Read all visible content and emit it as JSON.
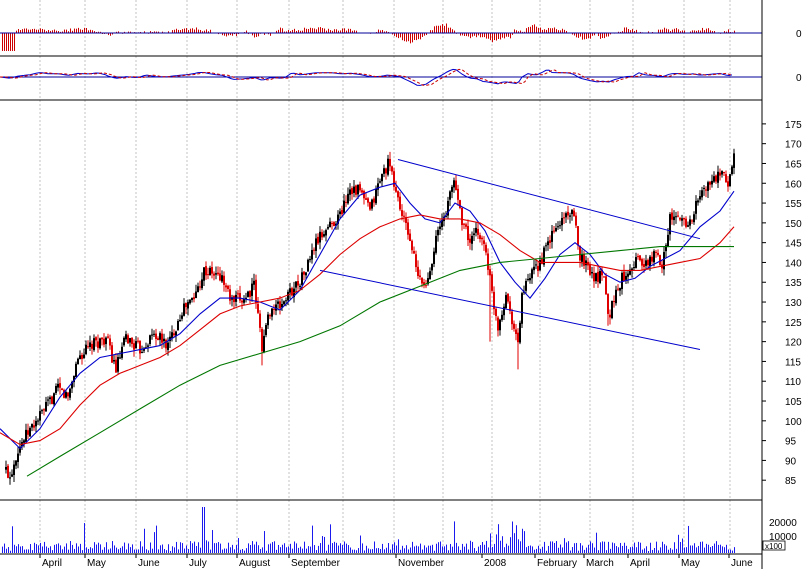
{
  "colors": {
    "price_up": "#000000",
    "price_down": "#e00000",
    "ma_short": "#0000cc",
    "ma_mid": "#dd0000",
    "ma_long": "#007700",
    "channel": "#0000cc",
    "panel_rule": "#000099",
    "volume": "#1a1aee",
    "histogram": "#cc0000",
    "grid": "#aaaaaa"
  },
  "chart_data": [
    {
      "type": "bar",
      "panel": "momentum-histogram",
      "y_tick_labels": [
        "0"
      ],
      "zero_line": true
    },
    {
      "type": "line",
      "panel": "oscillator",
      "y_tick_labels": [
        "0"
      ],
      "series_styles": [
        "solid",
        "dashed"
      ]
    },
    {
      "type": "line",
      "panel": "price",
      "subtype": "ohlc",
      "grid": true,
      "x_tick_labels": [
        "April",
        "May",
        "June",
        "July",
        "August",
        "September",
        "November",
        "2008",
        "February",
        "March",
        "April",
        "May",
        "June"
      ],
      "ylim": [
        80,
        178
      ],
      "y_ticks": [
        85,
        90,
        95,
        100,
        105,
        110,
        115,
        120,
        125,
        130,
        135,
        140,
        145,
        150,
        155,
        160,
        165,
        170,
        175
      ],
      "y_tick_labels": [
        "85",
        "90",
        "95",
        "100",
        "105",
        "110",
        "115",
        "120",
        "125",
        "130",
        "135",
        "140",
        "145",
        "150",
        "155",
        "160",
        "165",
        "170",
        "175"
      ],
      "price_path": [
        [
          0,
          90
        ],
        [
          10,
          86
        ],
        [
          18,
          93
        ],
        [
          28,
          97
        ],
        [
          45,
          103
        ],
        [
          58,
          108
        ],
        [
          68,
          106
        ],
        [
          78,
          116
        ],
        [
          92,
          119
        ],
        [
          106,
          121
        ],
        [
          116,
          113
        ],
        [
          126,
          121
        ],
        [
          140,
          118
        ],
        [
          154,
          122
        ],
        [
          168,
          119
        ],
        [
          182,
          128
        ],
        [
          194,
          131
        ],
        [
          204,
          138
        ],
        [
          214,
          137
        ],
        [
          222,
          136
        ],
        [
          232,
          130
        ],
        [
          244,
          131
        ],
        [
          254,
          134
        ],
        [
          262,
          119
        ],
        [
          270,
          128
        ],
        [
          280,
          129
        ],
        [
          292,
          133
        ],
        [
          304,
          137
        ],
        [
          316,
          145
        ],
        [
          328,
          149
        ],
        [
          340,
          152
        ],
        [
          350,
          159
        ],
        [
          360,
          158
        ],
        [
          370,
          153
        ],
        [
          380,
          161
        ],
        [
          388,
          165
        ],
        [
          394,
          160
        ],
        [
          402,
          152
        ],
        [
          410,
          146
        ],
        [
          418,
          136
        ],
        [
          426,
          134
        ],
        [
          436,
          146
        ],
        [
          446,
          153
        ],
        [
          454,
          161
        ],
        [
          462,
          151
        ],
        [
          470,
          145
        ],
        [
          478,
          148
        ],
        [
          486,
          143
        ],
        [
          492,
          132
        ],
        [
          498,
          124
        ],
        [
          506,
          132
        ],
        [
          512,
          126
        ],
        [
          518,
          119
        ],
        [
          522,
          132
        ],
        [
          530,
          136
        ],
        [
          540,
          140
        ],
        [
          552,
          147
        ],
        [
          560,
          150
        ],
        [
          568,
          153
        ],
        [
          574,
          151
        ],
        [
          580,
          142
        ],
        [
          588,
          139
        ],
        [
          596,
          136
        ],
        [
          604,
          138
        ],
        [
          608,
          126
        ],
        [
          614,
          131
        ],
        [
          622,
          136
        ],
        [
          630,
          139
        ],
        [
          638,
          141
        ],
        [
          646,
          139
        ],
        [
          654,
          142
        ],
        [
          662,
          140
        ],
        [
          670,
          151
        ],
        [
          680,
          151
        ],
        [
          690,
          150
        ],
        [
          700,
          157
        ],
        [
          710,
          160
        ],
        [
          720,
          162
        ],
        [
          728,
          160
        ],
        [
          734,
          167
        ]
      ],
      "low_spikes": [
        [
          262,
          114
        ],
        [
          518,
          113
        ],
        [
          608,
          124
        ],
        [
          490,
          120
        ]
      ],
      "moving_averages": [
        {
          "style": "blue",
          "points": [
            [
              0,
              98
            ],
            [
              20,
              93
            ],
            [
              40,
              98
            ],
            [
              60,
              106
            ],
            [
              80,
              112
            ],
            [
              100,
              116
            ],
            [
              120,
              117
            ],
            [
              140,
              118
            ],
            [
              160,
              119
            ],
            [
              180,
              122
            ],
            [
              200,
              127
            ],
            [
              220,
              131
            ],
            [
              240,
              131
            ],
            [
              260,
              130
            ],
            [
              280,
              128
            ],
            [
              300,
              133
            ],
            [
              320,
              142
            ],
            [
              340,
              151
            ],
            [
              360,
              157
            ],
            [
              380,
              159
            ],
            [
              395,
              160
            ],
            [
              410,
              155
            ],
            [
              425,
              151
            ],
            [
              440,
              150
            ],
            [
              455,
              155
            ],
            [
              470,
              153
            ],
            [
              485,
              148
            ],
            [
              500,
              140
            ],
            [
              515,
              135
            ],
            [
              530,
              131
            ],
            [
              545,
              136
            ],
            [
              560,
              142
            ],
            [
              575,
              145
            ],
            [
              590,
              142
            ],
            [
              605,
              137
            ],
            [
              620,
              135
            ],
            [
              635,
              136
            ],
            [
              650,
              139
            ],
            [
              665,
              141
            ],
            [
              680,
              143
            ],
            [
              700,
              149
            ],
            [
              720,
              153
            ],
            [
              734,
              158
            ]
          ]
        },
        {
          "style": "red",
          "points": [
            [
              0,
              97
            ],
            [
              20,
              94
            ],
            [
              40,
              95
            ],
            [
              60,
              98
            ],
            [
              80,
              104
            ],
            [
              100,
              109
            ],
            [
              120,
              112
            ],
            [
              140,
              114
            ],
            [
              160,
              116
            ],
            [
              180,
              119
            ],
            [
              200,
              123
            ],
            [
              220,
              127
            ],
            [
              240,
              129
            ],
            [
              260,
              130
            ],
            [
              280,
              131
            ],
            [
              300,
              133
            ],
            [
              320,
              137
            ],
            [
              340,
              142
            ],
            [
              360,
              146
            ],
            [
              380,
              149
            ],
            [
              400,
              151
            ],
            [
              420,
              152
            ],
            [
              440,
              151
            ],
            [
              460,
              151
            ],
            [
              480,
              150
            ],
            [
              500,
              147
            ],
            [
              520,
              143
            ],
            [
              540,
              140
            ],
            [
              560,
              140
            ],
            [
              580,
              140
            ],
            [
              600,
              139
            ],
            [
              620,
              138
            ],
            [
              640,
              138
            ],
            [
              660,
              139
            ],
            [
              680,
              140
            ],
            [
              700,
              141
            ],
            [
              720,
              145
            ],
            [
              734,
              149
            ]
          ]
        },
        {
          "style": "green",
          "points": [
            [
              27,
              86
            ],
            [
              60,
              91
            ],
            [
              100,
              97
            ],
            [
              140,
              103
            ],
            [
              180,
              109
            ],
            [
              220,
              114
            ],
            [
              260,
              117
            ],
            [
              300,
              120
            ],
            [
              340,
              124
            ],
            [
              380,
              130
            ],
            [
              420,
              134
            ],
            [
              460,
              138
            ],
            [
              500,
              140
            ],
            [
              540,
              141
            ],
            [
              580,
              142
            ],
            [
              620,
              143
            ],
            [
              660,
              144
            ],
            [
              700,
              144
            ],
            [
              734,
              144
            ]
          ]
        }
      ],
      "channel_lines": [
        {
          "from": [
            398,
            166
          ],
          "to": [
            700,
            146
          ]
        },
        {
          "from": [
            320,
            138
          ],
          "to": [
            700,
            118
          ]
        }
      ]
    },
    {
      "type": "bar",
      "panel": "volume",
      "y_ticks": [
        10000,
        20000
      ],
      "y_tick_labels": [
        "10000",
        "20000"
      ],
      "multiplier_label": "x100"
    }
  ]
}
